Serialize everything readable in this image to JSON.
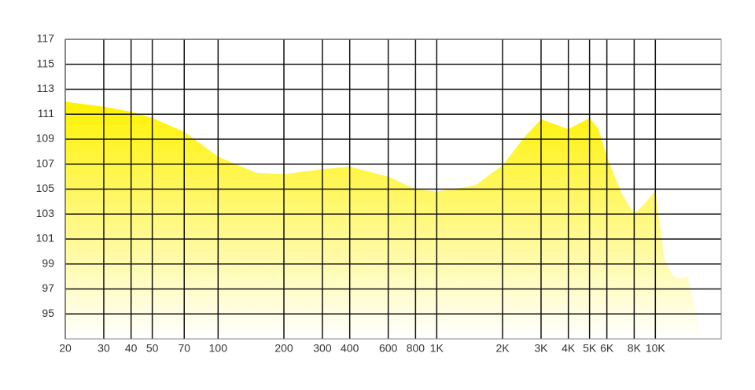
{
  "chart_data": {
    "type": "area",
    "xscale": "log",
    "grid": true,
    "color": "#fff200",
    "x": [
      20,
      30,
      40,
      50,
      70,
      100,
      150,
      200,
      300,
      400,
      600,
      800,
      1000,
      1500,
      2000,
      2500,
      3000,
      4000,
      5000,
      5500,
      6000,
      7000,
      8000,
      9000,
      10000,
      11000,
      12000,
      13000,
      14000,
      15000,
      16000
    ],
    "values": [
      112.0,
      111.6,
      111.2,
      110.7,
      109.6,
      107.6,
      106.3,
      106.2,
      106.6,
      106.8,
      106.0,
      105.0,
      104.8,
      105.3,
      106.9,
      109.1,
      110.6,
      109.8,
      110.7,
      109.8,
      107.6,
      104.7,
      103.0,
      103.9,
      104.9,
      99.4,
      98.1,
      97.8,
      98.0,
      95.9,
      94.0
    ],
    "xlim": [
      20,
      20000
    ],
    "xticks": [
      20,
      30,
      40,
      50,
      70,
      100,
      200,
      300,
      400,
      600,
      800,
      {
        "value": 1000,
        "label": "1K"
      },
      {
        "value": 2000,
        "label": "2K"
      },
      {
        "value": 3000,
        "label": "3K"
      },
      {
        "value": 4000,
        "label": "4K"
      },
      {
        "value": 5000,
        "label": "5K"
      },
      {
        "value": 6000,
        "label": "6K"
      },
      {
        "value": 8000,
        "label": "8K"
      },
      {
        "value": 10000,
        "label": "10K"
      }
    ],
    "ylim": [
      93,
      117
    ],
    "yticks": [
      95,
      97,
      99,
      101,
      103,
      105,
      107,
      109,
      111,
      113,
      115,
      117
    ]
  }
}
